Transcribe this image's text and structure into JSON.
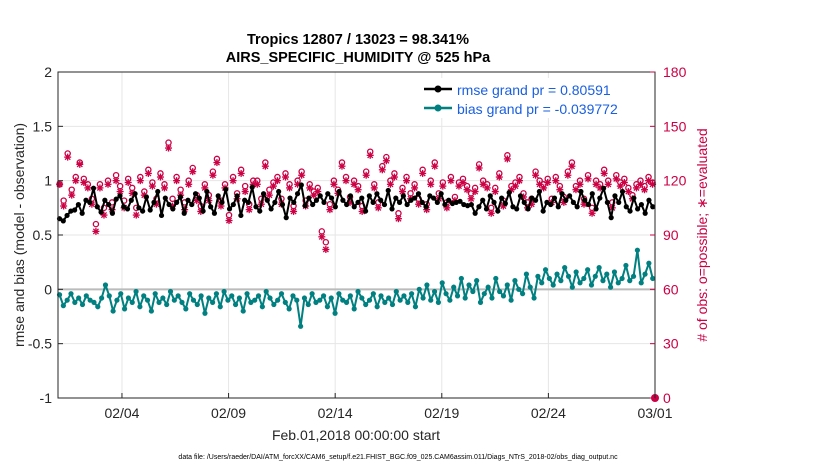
{
  "chart_data": {
    "type": "line",
    "title": "Tropics 12807 / 13023 = 98.341%",
    "subtitle": "AIRS_SPECIFIC_HUMIDITY @ 525 hPa",
    "xlabel": "Feb.01,2018 00:00:00 start",
    "ylabel": "rmse and bias (model - observation)",
    "ylabel_right": "# of obs: o=possible; ∗=evaluated",
    "footer": "data file: /Users/raeder/DAI/ATM_forcXX/CAM6_setup/f.e21.FHIST_BGC.f09_025.CAM6assim.011/Diags_NTrS_2018-02/obs_diag_output.nc",
    "xlim": [
      1,
      29
    ],
    "ylim": [
      -1,
      2
    ],
    "ylim_right": [
      0,
      180
    ],
    "grid": true,
    "legend_position": "top-right",
    "x_ticks": [
      4,
      9,
      14,
      19,
      24,
      29
    ],
    "x_tick_labels": [
      "02/04",
      "02/09",
      "02/14",
      "02/19",
      "02/24",
      "03/01"
    ],
    "y_ticks": [
      -1,
      -0.5,
      0,
      0.5,
      1,
      1.5,
      2
    ],
    "y_tick_labels": [
      "-1",
      "-0.5",
      "0",
      "0.5",
      "1",
      "1.5",
      "2"
    ],
    "y_right_ticks": [
      0,
      30,
      60,
      90,
      120,
      150,
      180
    ],
    "y_right_tick_labels": [
      "0",
      "30",
      "60",
      "90",
      "120",
      "150",
      "180"
    ],
    "colors": {
      "rmse": "#000000",
      "bias": "#008080",
      "obs": "#cc0044",
      "zero_line": "#bbbbbb",
      "grid": "#e6e6e6",
      "legend_text": "#1a5fe0"
    },
    "series": [
      {
        "name": "rmse grand pr = 0.80591",
        "axis": "left",
        "values": [
          0.65,
          0.63,
          0.68,
          0.72,
          0.73,
          0.78,
          0.7,
          0.82,
          0.8,
          0.93,
          0.76,
          0.71,
          0.82,
          0.78,
          0.7,
          0.83,
          0.86,
          0.76,
          0.74,
          0.82,
          0.88,
          0.75,
          0.72,
          0.85,
          0.73,
          0.8,
          0.9,
          0.68,
          0.84,
          0.78,
          0.74,
          0.8,
          0.85,
          0.7,
          0.82,
          0.78,
          0.88,
          0.84,
          0.72,
          0.9,
          0.76,
          0.7,
          0.86,
          0.8,
          0.92,
          0.74,
          0.78,
          0.86,
          0.68,
          0.82,
          0.8,
          0.94,
          0.76,
          0.72,
          0.88,
          0.82,
          0.74,
          0.8,
          0.9,
          0.78,
          0.66,
          0.84,
          0.8,
          0.88,
          0.96,
          0.77,
          0.84,
          0.78,
          0.82,
          0.86,
          0.8,
          0.88,
          0.84,
          0.76,
          0.9,
          0.82,
          0.78,
          0.86,
          0.76,
          0.8,
          0.84,
          0.72,
          0.86,
          0.8,
          0.88,
          0.82,
          0.78,
          0.91,
          0.74,
          0.84,
          0.8,
          0.86,
          0.78,
          0.82,
          0.84,
          0.88,
          0.8,
          0.76,
          0.86,
          0.84,
          0.8,
          0.88,
          0.78,
          0.82,
          0.79,
          0.8,
          0.81,
          0.78,
          0.77,
          0.78,
          0.7,
          0.76,
          0.82,
          0.74,
          0.86,
          0.8,
          0.72,
          0.84,
          0.79,
          0.89,
          0.76,
          0.74,
          0.86,
          0.8,
          0.74,
          0.84,
          0.82,
          0.9,
          0.72,
          0.8,
          0.78,
          0.84,
          0.76,
          0.88,
          0.82,
          0.86,
          0.8,
          0.76,
          0.9,
          0.82,
          0.78,
          0.88,
          0.74,
          0.84,
          0.93,
          0.8,
          0.66,
          0.86,
          0.8,
          0.9,
          0.76,
          0.72,
          0.84,
          0.74,
          0.78,
          0.7,
          0.82,
          0.76
        ]
      },
      {
        "name": "bias grand pr = -0.039772",
        "axis": "left",
        "values": [
          -0.05,
          -0.15,
          -0.1,
          -0.04,
          -0.12,
          -0.08,
          -0.14,
          -0.06,
          -0.1,
          -0.12,
          -0.16,
          -0.08,
          0.04,
          -0.06,
          -0.2,
          -0.1,
          -0.04,
          -0.18,
          -0.08,
          -0.12,
          -0.02,
          -0.16,
          -0.06,
          -0.1,
          -0.2,
          -0.04,
          -0.12,
          -0.08,
          -0.14,
          -0.02,
          -0.1,
          -0.06,
          -0.12,
          -0.18,
          -0.04,
          -0.1,
          -0.14,
          -0.06,
          -0.22,
          -0.08,
          -0.12,
          -0.04,
          -0.16,
          -0.02,
          -0.1,
          -0.06,
          -0.14,
          -0.08,
          -0.2,
          -0.04,
          -0.12,
          -0.1,
          -0.06,
          -0.16,
          -0.02,
          -0.08,
          -0.14,
          -0.1,
          -0.04,
          -0.12,
          -0.18,
          -0.06,
          -0.1,
          -0.34,
          -0.08,
          -0.14,
          -0.04,
          -0.12,
          -0.1,
          -0.06,
          -0.16,
          -0.08,
          -0.22,
          -0.04,
          -0.1,
          -0.12,
          -0.06,
          -0.18,
          -0.02,
          -0.08,
          -0.14,
          -0.1,
          -0.04,
          -0.16,
          -0.06,
          -0.12,
          -0.08,
          -0.14,
          -0.02,
          -0.1,
          -0.06,
          -0.12,
          -0.04,
          -0.16,
          0.0,
          -0.08,
          0.04,
          -0.1,
          -0.02,
          -0.12,
          0.06,
          -0.04,
          -0.1,
          0.02,
          -0.06,
          0.1,
          -0.08,
          0.04,
          -0.02,
          0.08,
          -0.12,
          -0.04,
          0.02,
          -0.08,
          0.1,
          -0.02,
          -0.06,
          0.04,
          -0.1,
          0.08,
          0.0,
          -0.04,
          0.14,
          0.02,
          -0.08,
          0.12,
          0.06,
          0.18,
          0.1,
          0.04,
          0.14,
          0.08,
          0.2,
          0.12,
          0.02,
          0.16,
          0.06,
          0.1,
          0.18,
          0.04,
          0.12,
          0.2,
          0.08,
          0.14,
          0.02,
          0.16,
          0.06,
          0.1,
          0.22,
          0.08,
          0.12,
          0.36,
          0.06,
          0.14,
          0.24,
          0.1
        ]
      },
      {
        "name": "possible",
        "axis": "right",
        "values": [
          118,
          109,
          135,
          115,
          122,
          130,
          121,
          118,
          110,
          96,
          118,
          105,
          120,
          108,
          123,
          117,
          109,
          121,
          116,
          105,
          122,
          114,
          126,
          119,
          110,
          124,
          118,
          141,
          110,
          122,
          115,
          108,
          120,
          127,
          112,
          106,
          118,
          112,
          125,
          132,
          109,
          118,
          101,
          122,
          113,
          126,
          117,
          107,
          120,
          120,
          110,
          130,
          115,
          119,
          122,
          110,
          124,
          118,
          106,
          120,
          125,
          109,
          118,
          114,
          116,
          92,
          86,
          107,
          120,
          115,
          130,
          122,
          111,
          120,
          117,
          106,
          125,
          136,
          118,
          108,
          128,
          133,
          120,
          124,
          102,
          116,
          122,
          113,
          118,
          110,
          126,
          107,
          120,
          130,
          113,
          119,
          108,
          122,
          111,
          119,
          121,
          117,
          113,
          116,
          129,
          120,
          118,
          105,
          116,
          124,
          109,
          134,
          117,
          119,
          122,
          113,
          108,
          110,
          125,
          120,
          118,
          121,
          110,
          122,
          117,
          111,
          125,
          130,
          117,
          120,
          110,
          123,
          105,
          120,
          118,
          126,
          120,
          108,
          123,
          119,
          121,
          116,
          112,
          118,
          120,
          117,
          122,
          119
        ]
      },
      {
        "name": "evaluated",
        "axis": "right",
        "values": [
          118,
          106,
          133,
          112,
          120,
          129,
          119,
          116,
          107,
          92,
          116,
          101,
          118,
          104,
          120,
          114,
          105,
          119,
          113,
          101,
          120,
          112,
          124,
          117,
          107,
          122,
          116,
          138,
          106,
          120,
          112,
          104,
          118,
          125,
          109,
          103,
          116,
          109,
          123,
          130,
          106,
          116,
          98,
          120,
          110,
          124,
          114,
          104,
          118,
          118,
          107,
          128,
          112,
          117,
          120,
          107,
          122,
          116,
          103,
          118,
          123,
          106,
          116,
          112,
          114,
          89,
          82,
          104,
          118,
          113,
          128,
          120,
          108,
          118,
          115,
          103,
          123,
          134,
          116,
          105,
          126,
          131,
          118,
          122,
          99,
          114,
          120,
          110,
          116,
          107,
          124,
          104,
          118,
          128,
          110,
          117,
          105,
          120,
          109,
          117,
          119,
          115,
          110,
          114,
          127,
          118,
          116,
          102,
          114,
          122,
          106,
          132,
          115,
          117,
          120,
          111,
          105,
          107,
          123,
          118,
          116,
          119,
          108,
          120,
          115,
          108,
          123,
          128,
          115,
          118,
          107,
          121,
          102,
          118,
          116,
          124,
          118,
          105,
          121,
          117,
          119,
          114,
          110,
          116,
          118,
          115,
          120,
          118
        ]
      }
    ]
  }
}
